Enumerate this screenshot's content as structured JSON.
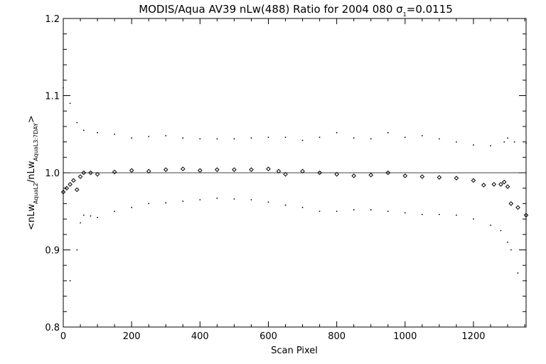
{
  "chart_data": {
    "type": "scatter",
    "title": {
      "prefix": "MODIS/Aqua AV39 nLw(488) Ratio for 2004 080 ",
      "sigma_symbol": "σ",
      "sigma_sub": "1",
      "sigma_value": "=0.0115"
    },
    "xlabel": "Scan Pixel",
    "ylabel": {
      "open": "<nLw",
      "sub1": "AquaL2",
      "mid": "/nLw",
      "sub2": "AquaL3:7DAY",
      "close": ">"
    },
    "xlim": [
      0,
      1354
    ],
    "ylim": [
      0.8,
      1.2
    ],
    "x_ticks": [
      0,
      200,
      400,
      600,
      800,
      1000,
      1200
    ],
    "x_tick_labels": [
      "0",
      "200",
      "400",
      "600",
      "800",
      "1000",
      "1200"
    ],
    "y_ticks": [
      0.8,
      0.9,
      1.0,
      1.1,
      1.2
    ],
    "y_tick_labels": [
      "0.8",
      "0.9",
      "1.0",
      "1.1",
      "1.2"
    ],
    "reference_line": 1.0,
    "grid": false,
    "series": [
      {
        "role": "mean",
        "marker": "diamond",
        "color": "#000000",
        "x": [
          0,
          10,
          20,
          30,
          40,
          50,
          60,
          80,
          100,
          150,
          200,
          250,
          300,
          350,
          400,
          450,
          500,
          550,
          600,
          630,
          650,
          700,
          750,
          800,
          850,
          900,
          950,
          1000,
          1050,
          1100,
          1150,
          1200,
          1230,
          1260,
          1280,
          1290,
          1300,
          1310,
          1330,
          1354
        ],
        "y": [
          0.975,
          0.98,
          0.985,
          0.99,
          0.978,
          0.995,
          1.0,
          1.0,
          0.998,
          1.001,
          1.003,
          1.002,
          1.004,
          1.005,
          1.003,
          1.004,
          1.004,
          1.004,
          1.005,
          1.002,
          0.998,
          1.002,
          1.0,
          0.998,
          0.996,
          0.997,
          1.0,
          0.996,
          0.995,
          0.994,
          0.993,
          0.99,
          0.984,
          0.985,
          0.985,
          0.988,
          0.982,
          0.96,
          0.955,
          0.945
        ]
      },
      {
        "role": "upper",
        "marker": "dot",
        "color": "#000000",
        "x": [
          0,
          20,
          40,
          60,
          100,
          150,
          200,
          250,
          300,
          350,
          400,
          450,
          500,
          550,
          600,
          650,
          700,
          750,
          800,
          850,
          900,
          950,
          1000,
          1050,
          1100,
          1150,
          1200,
          1250,
          1290,
          1300,
          1320,
          1354
        ],
        "y": [
          1.11,
          1.09,
          1.065,
          1.055,
          1.052,
          1.05,
          1.045,
          1.047,
          1.048,
          1.045,
          1.044,
          1.044,
          1.044,
          1.045,
          1.046,
          1.046,
          1.042,
          1.046,
          1.052,
          1.045,
          1.044,
          1.052,
          1.046,
          1.048,
          1.044,
          1.04,
          1.036,
          1.035,
          1.04,
          1.045,
          1.04,
          1.038
        ]
      },
      {
        "role": "lower",
        "marker": "dot",
        "color": "#000000",
        "x": [
          20,
          40,
          50,
          60,
          80,
          100,
          150,
          200,
          250,
          300,
          350,
          400,
          450,
          500,
          550,
          600,
          650,
          700,
          750,
          800,
          850,
          900,
          950,
          1000,
          1050,
          1100,
          1150,
          1200,
          1250,
          1280,
          1300,
          1310,
          1330,
          1354
        ],
        "y": [
          0.86,
          0.9,
          0.935,
          0.945,
          0.944,
          0.942,
          0.95,
          0.955,
          0.96,
          0.961,
          0.963,
          0.965,
          0.967,
          0.966,
          0.965,
          0.962,
          0.958,
          0.955,
          0.95,
          0.95,
          0.952,
          0.952,
          0.95,
          0.948,
          0.946,
          0.946,
          0.945,
          0.94,
          0.932,
          0.925,
          0.91,
          0.9,
          0.87,
          0.86
        ]
      }
    ]
  }
}
